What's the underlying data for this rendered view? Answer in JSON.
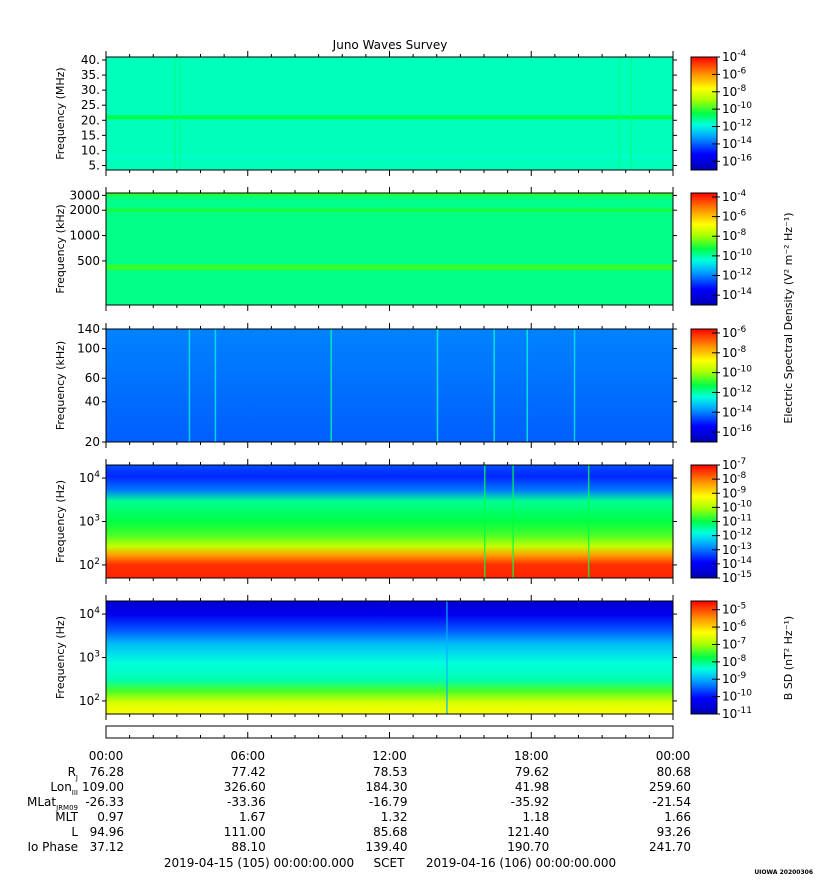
{
  "chart_data": {
    "type": "heatmap",
    "title": "Juno Waves Survey",
    "panels": [
      {
        "name": "hfr-high",
        "ylabel": "Frequency (MHz)",
        "yscale": "linear",
        "ylim": [
          3.5,
          41
        ],
        "yticks": [
          5,
          10,
          15,
          20,
          25,
          30,
          35,
          40
        ],
        "ytick_labels": [
          "5.",
          "10.",
          "15.",
          "20.",
          "25.",
          "30.",
          "35.",
          "40."
        ],
        "colorbar": {
          "exponents": [
            -4,
            -6,
            -8,
            -10,
            -12,
            -14,
            -16
          ],
          "min_exp": -17,
          "max_exp": -4,
          "label": ""
        },
        "background_exp": -11.5,
        "bands": [
          {
            "center": 21,
            "width": 1.3,
            "exp": -10.5
          },
          {
            "center": 8,
            "width": 0.6,
            "exp": -11.8
          }
        ],
        "streaks": [
          {
            "t": 2.9,
            "exp": -11
          },
          {
            "t": 3.1,
            "exp": -11
          },
          {
            "t": 21.7,
            "exp": -11
          },
          {
            "t": 22.2,
            "exp": -11
          }
        ]
      },
      {
        "name": "hfr-low",
        "ylabel": "Frequency (kHz)",
        "yscale": "log",
        "ylim": [
          150,
          3200
        ],
        "yticks": [
          500,
          1000,
          2000,
          3000
        ],
        "ytick_labels": [
          "500",
          "1000",
          "2000",
          "3000"
        ],
        "colorbar": {
          "exponents": [
            -4,
            -6,
            -8,
            -10,
            -12,
            -14
          ],
          "min_exp": -15,
          "max_exp": -3.6,
          "label": ""
        },
        "background_exp": -9.8,
        "bands": [
          {
            "center": 420,
            "width": 0.035,
            "exp": -8.9
          },
          {
            "center": 2000,
            "width": 0.018,
            "exp": -9.1
          },
          {
            "center": 3050,
            "width": 0.02,
            "exp": -9.0
          }
        ],
        "streaks": []
      },
      {
        "name": "lfr",
        "ylabel": "Frequency (kHz)",
        "yscale": "log",
        "ylim": [
          20,
          140
        ],
        "yticks": [
          20,
          40,
          60,
          100,
          140
        ],
        "ytick_labels": [
          "20",
          "40",
          "60",
          "100",
          "140"
        ],
        "colorbar": {
          "exponents": [
            -6,
            -8,
            -10,
            -12,
            -14,
            -16
          ],
          "min_exp": -17,
          "max_exp": -5.6,
          "label": "Electric Spectral Density (V² m⁻² Hz⁻¹)"
        },
        "background_exp": -14.2,
        "bands": [],
        "streaks": [
          {
            "t": 3.5,
            "exp": -12.6
          },
          {
            "t": 4.6,
            "exp": -12.6
          },
          {
            "t": 9.5,
            "exp": -12.0
          },
          {
            "t": 14.0,
            "exp": -12.4
          },
          {
            "t": 16.4,
            "exp": -12.3
          },
          {
            "t": 17.8,
            "exp": -12.4
          },
          {
            "t": 19.8,
            "exp": -12.6
          }
        ]
      },
      {
        "name": "waveform-e",
        "ylabel": "Frequency (Hz)",
        "yscale": "log",
        "ylim": [
          50,
          20000
        ],
        "yticks": [
          100,
          1000,
          10000
        ],
        "ytick_labels": [
          "10²",
          "10³",
          "10⁴"
        ],
        "colorbar": {
          "exponents": [
            -7,
            -8,
            -9,
            -10,
            -11,
            -12,
            -13,
            -14,
            -15
          ],
          "min_exp": -15,
          "max_exp": -7,
          "label": ""
        },
        "background_exp": -13,
        "bands": [],
        "streaks": [
          {
            "t": 16.0,
            "exp": -11
          },
          {
            "t": 17.2,
            "exp": -11
          },
          {
            "t": 20.4,
            "exp": -11
          }
        ]
      },
      {
        "name": "waveform-b",
        "ylabel": "Frequency (Hz)",
        "yscale": "log",
        "ylim": [
          50,
          20000
        ],
        "yticks": [
          100,
          1000,
          10000
        ],
        "ytick_labels": [
          "10²",
          "10³",
          "10⁴"
        ],
        "colorbar": {
          "exponents": [
            -5,
            -6,
            -7,
            -8,
            -9,
            -10,
            -11
          ],
          "min_exp": -11,
          "max_exp": -4.5,
          "label": "B SD (nT² Hz⁻¹)"
        },
        "background_exp": -10,
        "bands": [],
        "streaks": [
          {
            "t": 14.4,
            "exp": -9
          }
        ]
      }
    ],
    "x": {
      "tick_labels": [
        "00:00",
        "06:00",
        "12:00",
        "18:00",
        "00:00"
      ],
      "tick_hours": [
        0,
        6,
        12,
        18,
        24
      ],
      "minor_step_hours": 1,
      "range_hours": [
        0,
        24
      ]
    },
    "ephemeris": {
      "rows": [
        {
          "label": "R",
          "sub": "J",
          "values": [
            "76.28",
            "77.42",
            "78.53",
            "79.62",
            "80.68"
          ]
        },
        {
          "label": "Lon",
          "sub": "III",
          "values": [
            "109.00",
            "326.60",
            "184.30",
            "41.98",
            "259.60"
          ]
        },
        {
          "label": "MLat",
          "sub": "JRM09",
          "values": [
            "-26.33",
            "-33.36",
            "-16.79",
            "-35.92",
            "-21.54"
          ]
        },
        {
          "label": "MLT",
          "sub": "",
          "values": [
            "0.97",
            "1.67",
            "1.32",
            "1.18",
            "1.66"
          ]
        },
        {
          "label": "L",
          "sub": "",
          "values": [
            "94.96",
            "111.00",
            "85.68",
            "121.40",
            "93.26"
          ]
        },
        {
          "label": "Io Phase",
          "sub": "",
          "values": [
            "37.12",
            "88.10",
            "139.40",
            "190.70",
            "241.70"
          ]
        }
      ]
    },
    "footer": {
      "start": "2019-04-15 (105) 00:00:00.000",
      "scet": "SCET",
      "end": "2019-04-16 (106) 00:00:00.000"
    },
    "stamp": "UIOWA 20200306"
  }
}
